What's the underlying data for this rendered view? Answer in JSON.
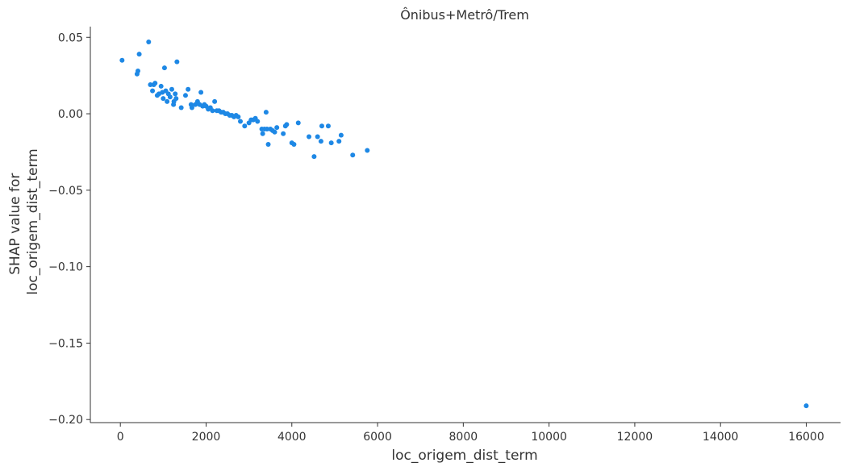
{
  "chart_data": {
    "type": "scatter",
    "title": "Ônibus+Metrô/Trem",
    "xlabel": "loc_origem_dist_term",
    "ylabel_lines": [
      "SHAP value for",
      "loc_origem_dist_term"
    ],
    "xlim": [
      -700,
      16800
    ],
    "ylim": [
      -0.202,
      0.057
    ],
    "xticks": [
      0,
      2000,
      4000,
      6000,
      8000,
      10000,
      12000,
      14000,
      16000
    ],
    "xtick_labels": [
      "0",
      "2000",
      "4000",
      "6000",
      "8000",
      "10000",
      "12000",
      "14000",
      "16000"
    ],
    "yticks": [
      0.05,
      0.0,
      -0.05,
      -0.1,
      -0.15,
      -0.2
    ],
    "ytick_labels": [
      "0.05",
      "0.00",
      "−0.05",
      "−0.10",
      "−0.15",
      "−0.20"
    ],
    "grid": false,
    "point_color": "#1e88e5",
    "points": [
      [
        40,
        0.035
      ],
      [
        390,
        0.026
      ],
      [
        410,
        0.028
      ],
      [
        440,
        0.039
      ],
      [
        660,
        0.047
      ],
      [
        700,
        0.019
      ],
      [
        750,
        0.015
      ],
      [
        780,
        0.019
      ],
      [
        810,
        0.02
      ],
      [
        860,
        0.012
      ],
      [
        900,
        0.013
      ],
      [
        950,
        0.018
      ],
      [
        980,
        0.014
      ],
      [
        1000,
        0.01
      ],
      [
        1030,
        0.03
      ],
      [
        1060,
        0.015
      ],
      [
        1090,
        0.008
      ],
      [
        1120,
        0.013
      ],
      [
        1160,
        0.011
      ],
      [
        1200,
        0.016
      ],
      [
        1240,
        0.006
      ],
      [
        1250,
        0.008
      ],
      [
        1280,
        0.013
      ],
      [
        1300,
        0.01
      ],
      [
        1320,
        0.034
      ],
      [
        1420,
        0.004
      ],
      [
        1520,
        0.012
      ],
      [
        1580,
        0.016
      ],
      [
        1650,
        0.006
      ],
      [
        1670,
        0.004
      ],
      [
        1750,
        0.006
      ],
      [
        1800,
        0.008
      ],
      [
        1850,
        0.006
      ],
      [
        1880,
        0.014
      ],
      [
        1920,
        0.005
      ],
      [
        1960,
        0.006
      ],
      [
        2000,
        0.005
      ],
      [
        2050,
        0.003
      ],
      [
        2100,
        0.004
      ],
      [
        2150,
        0.002
      ],
      [
        2200,
        0.008
      ],
      [
        2250,
        0.002
      ],
      [
        2300,
        0.002
      ],
      [
        2350,
        0.001
      ],
      [
        2400,
        0.001
      ],
      [
        2450,
        0.0
      ],
      [
        2500,
        0.0
      ],
      [
        2550,
        -0.001
      ],
      [
        2600,
        -0.001
      ],
      [
        2650,
        -0.002
      ],
      [
        2700,
        -0.001
      ],
      [
        2750,
        -0.002
      ],
      [
        2800,
        -0.005
      ],
      [
        2900,
        -0.008
      ],
      [
        3000,
        -0.006
      ],
      [
        3050,
        -0.004
      ],
      [
        3100,
        -0.004
      ],
      [
        3150,
        -0.003
      ],
      [
        3200,
        -0.005
      ],
      [
        3300,
        -0.01
      ],
      [
        3320,
        -0.013
      ],
      [
        3360,
        -0.01
      ],
      [
        3400,
        0.001
      ],
      [
        3420,
        -0.01
      ],
      [
        3450,
        -0.02
      ],
      [
        3500,
        -0.01
      ],
      [
        3550,
        -0.011
      ],
      [
        3600,
        -0.012
      ],
      [
        3650,
        -0.009
      ],
      [
        3800,
        -0.013
      ],
      [
        3850,
        -0.008
      ],
      [
        3880,
        -0.007
      ],
      [
        4000,
        -0.019
      ],
      [
        4050,
        -0.02
      ],
      [
        4150,
        -0.006
      ],
      [
        4400,
        -0.015
      ],
      [
        4520,
        -0.028
      ],
      [
        4600,
        -0.015
      ],
      [
        4680,
        -0.018
      ],
      [
        4700,
        -0.008
      ],
      [
        4850,
        -0.008
      ],
      [
        4920,
        -0.019
      ],
      [
        5100,
        -0.018
      ],
      [
        5150,
        -0.014
      ],
      [
        5420,
        -0.027
      ],
      [
        5760,
        -0.024
      ],
      [
        16000,
        -0.191
      ]
    ]
  }
}
